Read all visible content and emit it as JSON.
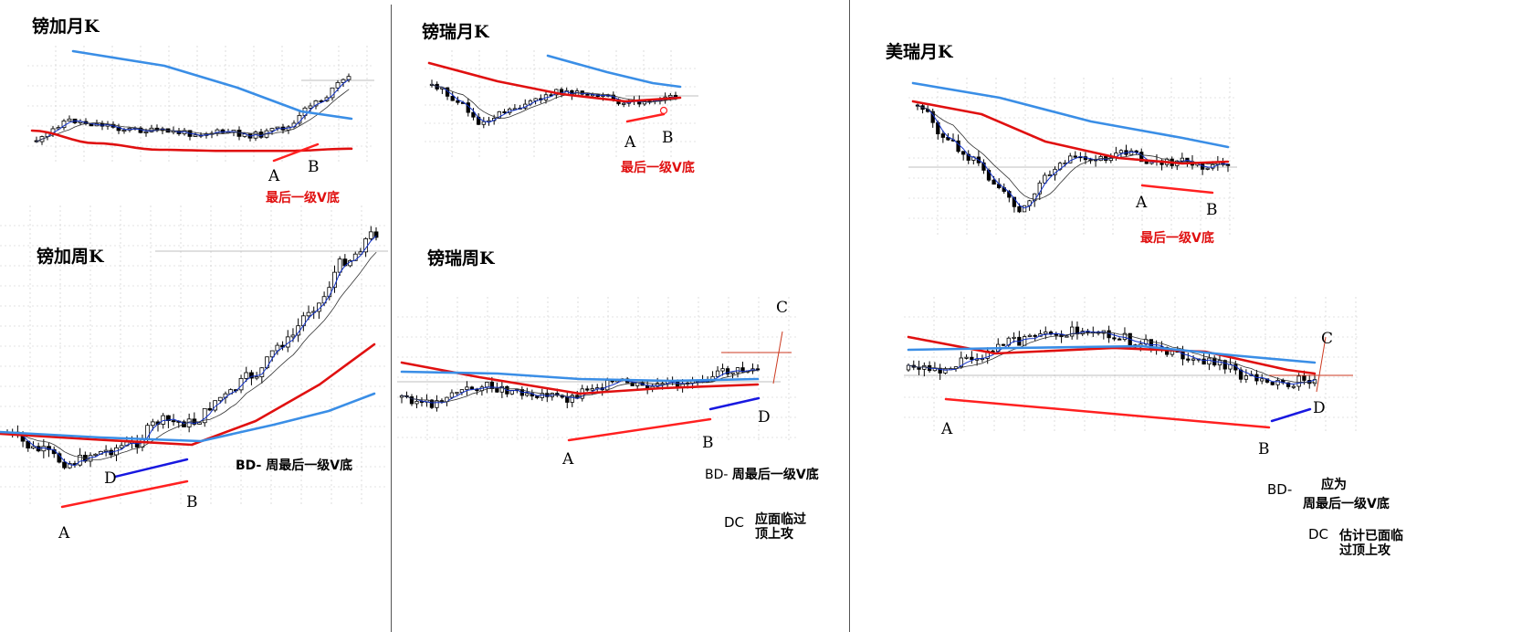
{
  "panels": [
    {
      "monthly": {
        "title": "镑加月K",
        "point_a": "A",
        "point_b": "B",
        "note": "最后一级V底"
      },
      "weekly": {
        "title": "镑加周K",
        "point_a": "A",
        "point_b": "B",
        "point_d": "D",
        "note_prefix": "BD-",
        "note": "周最后一级V底"
      }
    },
    {
      "monthly": {
        "title": "镑瑞月K",
        "point_a": "A",
        "point_b": "B",
        "note": "最后一级V底"
      },
      "weekly": {
        "title": "镑瑞周K",
        "point_a": "A",
        "point_b": "B",
        "point_c": "C",
        "point_d": "D",
        "note_bd_prefix": "BD-",
        "note_bd": "周最后一级V底",
        "note_dc_prefix": "DC",
        "note_dc_line1": "应面临过",
        "note_dc_line2": "顶上攻"
      }
    },
    {
      "monthly": {
        "title": "美瑞月K",
        "point_a": "A",
        "point_b": "B",
        "note": "最后一级V底"
      },
      "weekly": {
        "title": "",
        "point_a": "A",
        "point_b": "B",
        "point_c": "C",
        "point_d": "D",
        "note_bd_prefix": "BD-",
        "note_bd_line1": "应为",
        "note_bd_line2": "周最后一级V底",
        "note_dc_prefix": "DC",
        "note_dc_line1": "估计已面临",
        "note_dc_line2": "过顶上攻"
      }
    }
  ],
  "colors": {
    "ma_red": "#e01010",
    "ma_blue": "#3a8ee6",
    "ma_thin_blue": "#1030c8",
    "ma_thin_black": "#333333",
    "trend_red": "#ff2020",
    "trend_blue": "#1818e0",
    "grid": "#c8c8c8",
    "candle": "#000000"
  },
  "chart_data": [
    {
      "type": "candlestick",
      "title": "镑加月K",
      "trend": {
        "direction": "rising",
        "label_from": "A",
        "label_to": "B"
      },
      "moving_averages": [
        {
          "color": "blue",
          "shape": "falling",
          "values": [
            90,
            80,
            66,
            52,
            40,
            34
          ]
        },
        {
          "color": "red",
          "shape": "falling-then-flat",
          "values": [
            75,
            52,
            40,
            38,
            38,
            42
          ]
        }
      ]
    },
    {
      "type": "candlestick",
      "title": "镑加周K",
      "trend": {
        "direction": "rising",
        "label_from": "A",
        "label_to": "B"
      },
      "trend_short": {
        "direction": "rising",
        "label_from": "D",
        "label_to": "B"
      },
      "moving_averages": [
        {
          "color": "red",
          "shape": "rising",
          "values": [
            50,
            48,
            48,
            58,
            90,
            140
          ]
        },
        {
          "color": "blue",
          "shape": "rising",
          "values": [
            52,
            50,
            50,
            56,
            78,
            104
          ]
        }
      ]
    },
    {
      "type": "candlestick",
      "title": "镑瑞月K",
      "trend": {
        "direction": "rising",
        "label_from": "A",
        "label_to": "B"
      }
    },
    {
      "type": "candlestick",
      "title": "镑瑞周K",
      "trend": {
        "direction": "rising",
        "label_from": "A",
        "label_to": "B"
      },
      "trend_short": {
        "direction": "rising",
        "label_from": "B",
        "label_to": "D"
      },
      "target": "C"
    },
    {
      "type": "candlestick",
      "title": "美瑞月K",
      "trend": {
        "direction": "falling",
        "label_from": "A",
        "label_to": "B"
      }
    },
    {
      "type": "candlestick",
      "title": "",
      "trend": {
        "direction": "falling",
        "label_from": "A",
        "label_to": "B"
      },
      "trend_short": {
        "direction": "rising",
        "label_from": "B",
        "label_to": "D"
      },
      "target": "C"
    }
  ]
}
